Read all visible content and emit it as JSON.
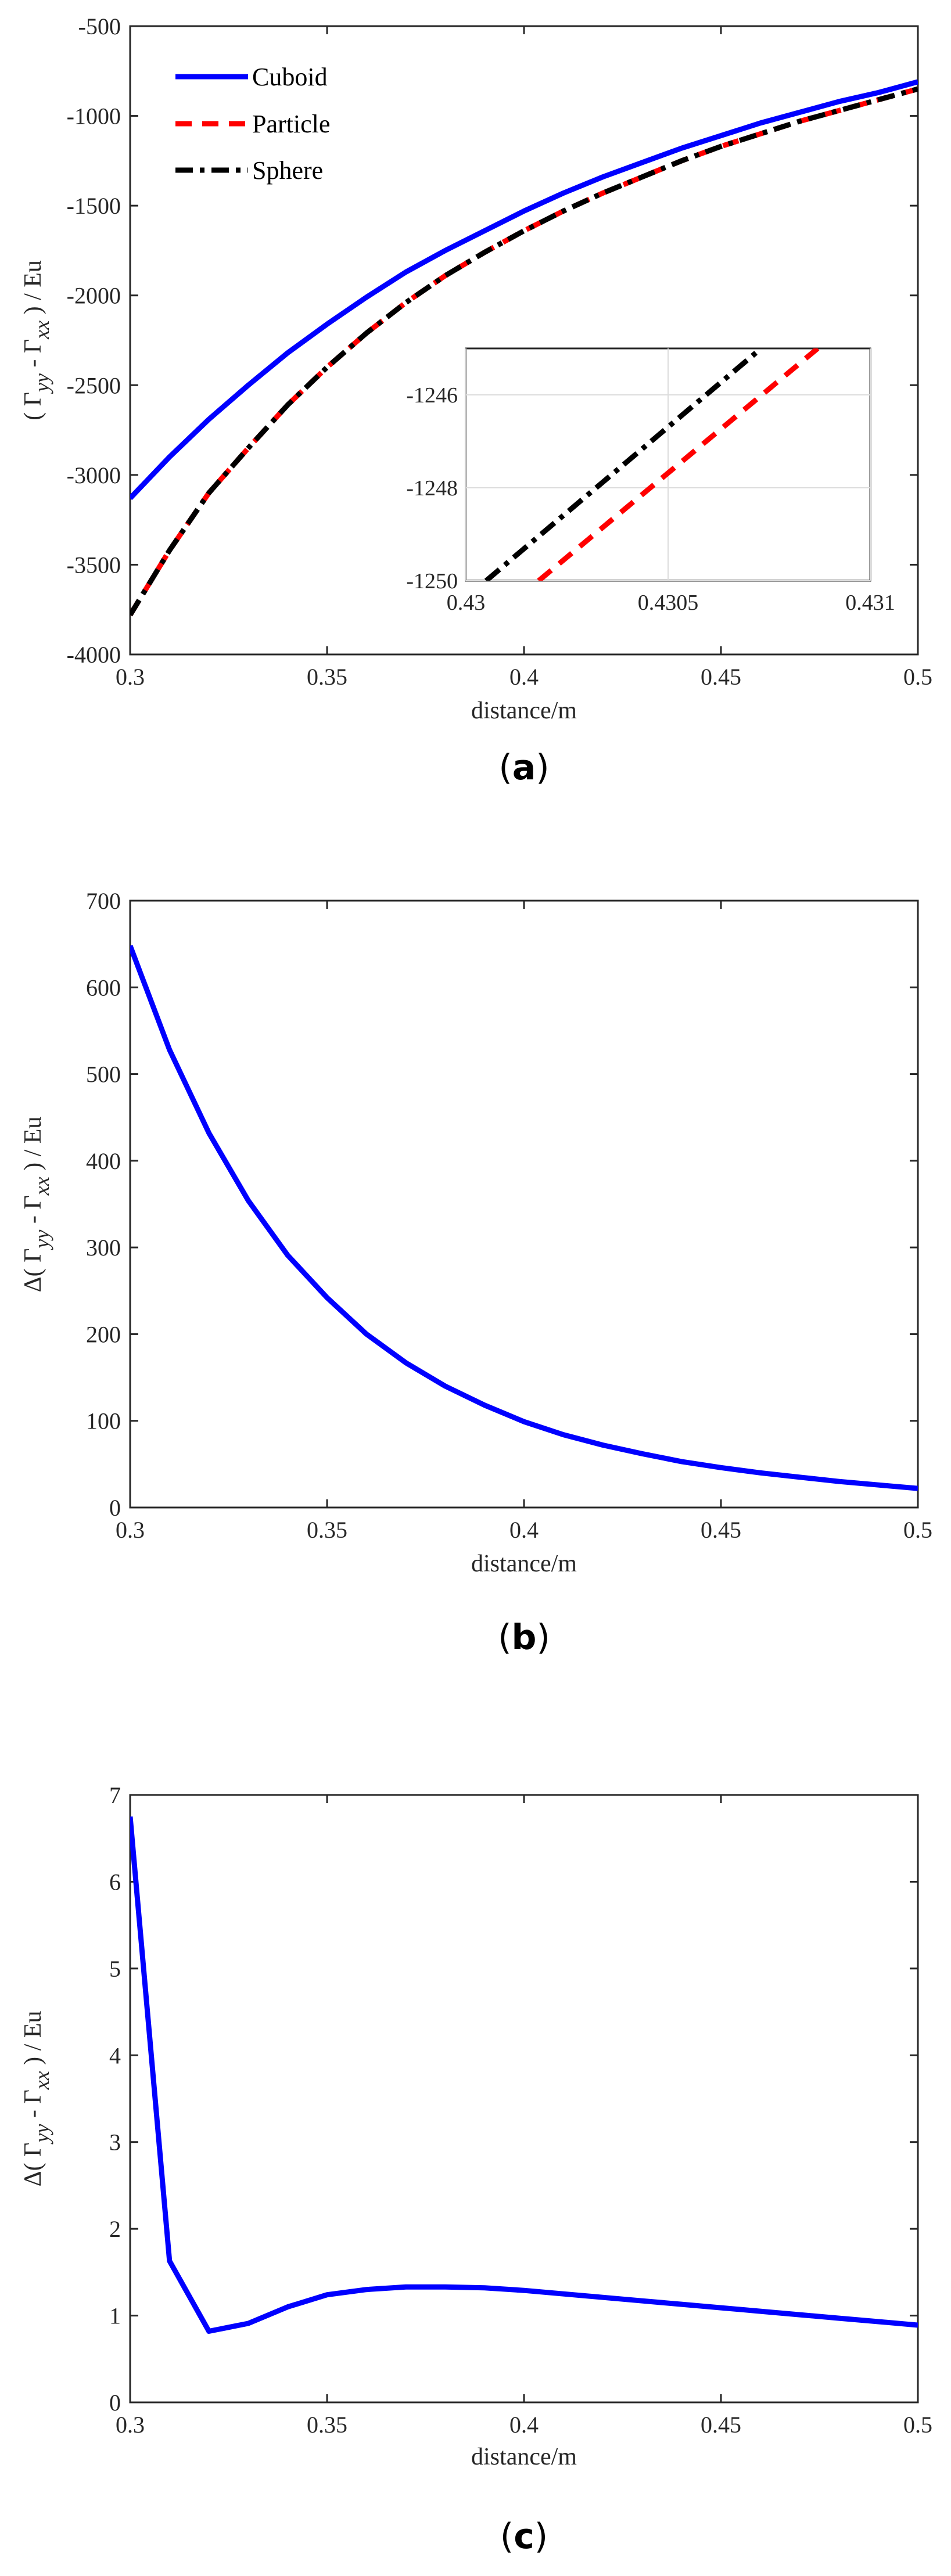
{
  "colors": {
    "cuboid": "#0000ff",
    "particle": "#ff0000",
    "sphere": "#000000",
    "axis": "#262626",
    "grid": "#dcdcdc"
  },
  "chart_data": [
    {
      "type": "line",
      "caption": "(a)",
      "caption_letter": "a",
      "xlabel": "distance/m",
      "ylabel": {
        "prefix": "( Γ",
        "sub1": "yy",
        "mid": " - Γ",
        "sub2": "xx",
        "suffix": " ) / Eu"
      },
      "xlim": [
        0.3,
        0.5
      ],
      "ylim": [
        -4000,
        -500
      ],
      "xticks": [
        "0.3",
        "0.35",
        "0.4",
        "0.45",
        "0.5"
      ],
      "yticks": [
        "-4000",
        "-3500",
        "-3000",
        "-2500",
        "-2000",
        "-1500",
        "-1000",
        "-500"
      ],
      "grid": false,
      "legend_position": "top-left",
      "series": [
        {
          "name": "Cuboid",
          "x": [
            0.3,
            0.31,
            0.32,
            0.33,
            0.34,
            0.35,
            0.36,
            0.37,
            0.38,
            0.39,
            0.4,
            0.41,
            0.42,
            0.43,
            0.44,
            0.45,
            0.46,
            0.47,
            0.48,
            0.49,
            0.5
          ],
          "y": [
            -3130,
            -2900,
            -2690,
            -2500,
            -2320,
            -2160,
            -2010,
            -1870,
            -1750,
            -1640,
            -1530,
            -1430,
            -1340,
            -1260,
            -1180,
            -1110,
            -1040,
            -980,
            -920,
            -870,
            -810
          ]
        },
        {
          "name": "Particle",
          "x": [
            0.3,
            0.31,
            0.32,
            0.33,
            0.34,
            0.35,
            0.36,
            0.37,
            0.38,
            0.39,
            0.4,
            0.41,
            0.42,
            0.43,
            0.44,
            0.45,
            0.46,
            0.47,
            0.48,
            0.49,
            0.5
          ],
          "y": [
            -3780,
            -3420,
            -3100,
            -2850,
            -2610,
            -2400,
            -2210,
            -2040,
            -1890,
            -1760,
            -1640,
            -1530,
            -1430,
            -1340,
            -1250,
            -1170,
            -1100,
            -1030,
            -970,
            -910,
            -850
          ]
        },
        {
          "name": "Sphere",
          "x": [
            0.3,
            0.31,
            0.32,
            0.33,
            0.34,
            0.35,
            0.36,
            0.37,
            0.38,
            0.39,
            0.4,
            0.41,
            0.42,
            0.43,
            0.44,
            0.45,
            0.46,
            0.47,
            0.48,
            0.49,
            0.5
          ],
          "y": [
            -3780,
            -3420,
            -3100,
            -2850,
            -2610,
            -2400,
            -2210,
            -2040,
            -1890,
            -1760,
            -1640,
            -1530,
            -1430,
            -1340,
            -1250,
            -1170,
            -1100,
            -1030,
            -970,
            -910,
            -850
          ]
        }
      ],
      "inset": {
        "xlim": [
          0.43,
          0.431
        ],
        "ylim": [
          -1250,
          -1245
        ],
        "xticks": [
          "0.43",
          "0.4305",
          "0.431"
        ],
        "yticks": [
          "-1250",
          "-1248",
          "-1246"
        ],
        "grid": true,
        "series": [
          {
            "name": "Particle",
            "x": [
              0.43018,
              0.43087
            ],
            "y": [
              -1250,
              -1245
            ]
          },
          {
            "name": "Sphere",
            "x": [
              0.43005,
              0.43073
            ],
            "y": [
              -1250,
              -1245
            ]
          }
        ]
      }
    },
    {
      "type": "line",
      "caption": "(b)",
      "caption_letter": "b",
      "xlabel": "distance/m",
      "ylabel": {
        "prefix": "Δ( Γ",
        "sub1": "yy",
        "mid": " - Γ",
        "sub2": "xx",
        "suffix": " ) / Eu"
      },
      "xlim": [
        0.3,
        0.5
      ],
      "ylim": [
        0,
        700
      ],
      "xticks": [
        "0.3",
        "0.35",
        "0.4",
        "0.45",
        "0.5"
      ],
      "yticks": [
        "0",
        "100",
        "200",
        "300",
        "400",
        "500",
        "600",
        "700"
      ],
      "grid": false,
      "series": [
        {
          "name": "",
          "x": [
            0.3,
            0.31,
            0.32,
            0.33,
            0.34,
            0.35,
            0.36,
            0.37,
            0.38,
            0.39,
            0.4,
            0.41,
            0.42,
            0.43,
            0.44,
            0.45,
            0.46,
            0.47,
            0.48,
            0.49,
            0.5
          ],
          "y": [
            648,
            528,
            432,
            354,
            291,
            242,
            200,
            167,
            140,
            118,
            99,
            84,
            72,
            62,
            53,
            46,
            40,
            35,
            30,
            26,
            22
          ]
        }
      ]
    },
    {
      "type": "line",
      "caption": "(c)",
      "caption_letter": "c",
      "xlabel": "distance/m",
      "ylabel": {
        "prefix": "Δ( Γ",
        "sub1": "yy",
        "mid": " - Γ",
        "sub2": "xx",
        "suffix": " ) / Eu"
      },
      "xlim": [
        0.3,
        0.5
      ],
      "ylim": [
        0,
        7
      ],
      "xticks": [
        "0.3",
        "0.35",
        "0.4",
        "0.45",
        "0.5"
      ],
      "yticks": [
        "0",
        "1",
        "2",
        "3",
        "4",
        "5",
        "6",
        "7"
      ],
      "grid": false,
      "series": [
        {
          "name": "",
          "x": [
            0.3,
            0.31,
            0.32,
            0.33,
            0.34,
            0.35,
            0.36,
            0.37,
            0.38,
            0.39,
            0.4,
            0.41,
            0.42,
            0.43,
            0.44,
            0.45,
            0.46,
            0.47,
            0.48,
            0.49,
            0.5
          ],
          "y": [
            6.75,
            1.63,
            0.82,
            0.91,
            1.1,
            1.24,
            1.3,
            1.33,
            1.33,
            1.32,
            1.29,
            1.25,
            1.21,
            1.17,
            1.13,
            1.09,
            1.05,
            1.01,
            0.97,
            0.93,
            0.89
          ]
        }
      ]
    }
  ]
}
